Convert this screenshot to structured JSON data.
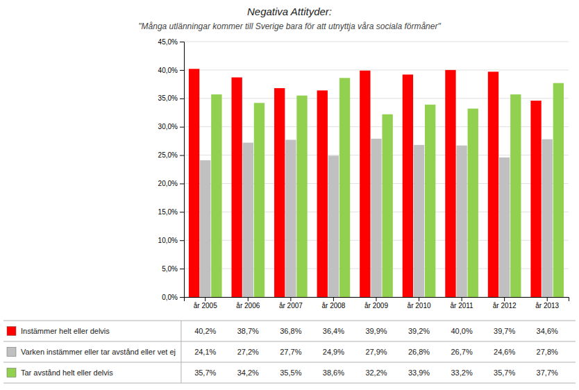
{
  "chart_data": {
    "type": "bar",
    "title": "Negativa Attityder:",
    "subtitle": "\"Många utlänningar kommer till Sverige bara för att utnyttja våra sociala förmåner\"",
    "categories": [
      "år 2005",
      "år 2006",
      "år 2007",
      "år 2008",
      "år 2009",
      "år 2010",
      "år 2011",
      "år 2012",
      "år 2013"
    ],
    "series": [
      {
        "name": "Instämmer helt eller delvis",
        "color": "#FF0000",
        "values": [
          40.2,
          38.7,
          36.8,
          36.4,
          39.9,
          39.2,
          40.0,
          39.7,
          34.6
        ],
        "value_labels": [
          "40,2%",
          "38,7%",
          "36,8%",
          "36,4%",
          "39,9%",
          "39,2%",
          "40,0%",
          "39,7%",
          "34,6%"
        ]
      },
      {
        "name": "Varken instämmer eller tar avstånd eller vet ej",
        "color": "#C0C0C0",
        "values": [
          24.1,
          27.2,
          27.7,
          24.9,
          27.9,
          26.8,
          26.7,
          24.6,
          27.8
        ],
        "value_labels": [
          "24,1%",
          "27,2%",
          "27,7%",
          "24,9%",
          "27,9%",
          "26,8%",
          "26,7%",
          "24,6%",
          "27,8%"
        ]
      },
      {
        "name": "Tar avstånd helt eller delvis",
        "color": "#92D050",
        "values": [
          35.7,
          34.2,
          35.5,
          38.6,
          32.2,
          33.9,
          33.2,
          35.7,
          37.7
        ],
        "value_labels": [
          "35,7%",
          "34,2%",
          "35,5%",
          "38,6%",
          "32,2%",
          "33,9%",
          "33,2%",
          "35,7%",
          "37,7%"
        ]
      }
    ],
    "ylim": [
      0,
      45
    ],
    "yticks": [
      {
        "value": 0,
        "label": "0,0%"
      },
      {
        "value": 5,
        "label": "5,0%"
      },
      {
        "value": 10,
        "label": "10,0%"
      },
      {
        "value": 15,
        "label": "15,0%"
      },
      {
        "value": 20,
        "label": "20,0%"
      },
      {
        "value": 25,
        "label": "25,0%"
      },
      {
        "value": 30,
        "label": "30,0%"
      },
      {
        "value": 35,
        "label": "35,0%"
      },
      {
        "value": 40,
        "label": "40,0%"
      },
      {
        "value": 45,
        "label": "45,0%"
      }
    ],
    "grid": true
  }
}
